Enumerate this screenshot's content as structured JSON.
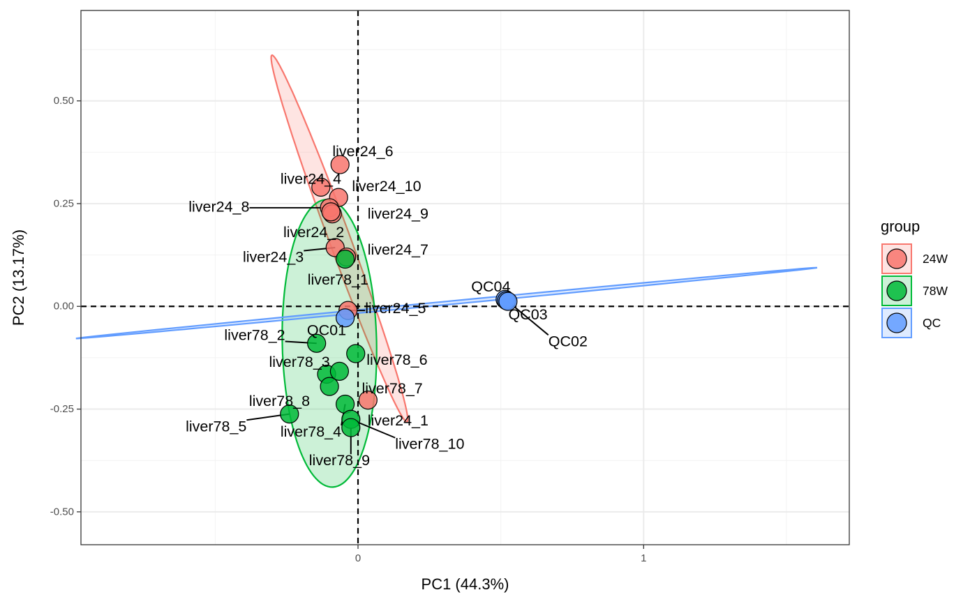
{
  "chart_data": {
    "type": "scatter",
    "xlabel": "PC1 (44.3%)",
    "ylabel": "PC2 (13.17%)",
    "xlim": [
      -0.97,
      1.72
    ],
    "ylim": [
      -0.58,
      0.72
    ],
    "x_ticks": [
      {
        "v": 0,
        "label": "0"
      },
      {
        "v": 1,
        "label": "1"
      }
    ],
    "y_ticks": [
      {
        "v": 0.5,
        "label": "0.50"
      },
      {
        "v": 0.25,
        "label": "0.25"
      },
      {
        "v": 0.0,
        "label": "0.00"
      },
      {
        "v": -0.25,
        "label": "-0.25"
      },
      {
        "v": -0.5,
        "label": "-0.50"
      }
    ],
    "grid": true,
    "reference_lines": {
      "x": 0,
      "y": 0,
      "style": "dashed"
    },
    "legend": {
      "title": "group",
      "position": "right",
      "entries": [
        {
          "name": "24W",
          "color": "#F8766D"
        },
        {
          "name": "78W",
          "color": "#00BA38"
        },
        {
          "name": "QC",
          "color": "#619CFF"
        }
      ]
    },
    "ellipses": [
      {
        "group": "24W",
        "color": "#F8766D",
        "center": [
          -0.065,
          0.165
        ],
        "half_major": 0.505,
        "half_minor": 0.035,
        "angle_deg": -62
      },
      {
        "group": "78W",
        "color": "#00BA38",
        "center": [
          -0.1,
          -0.09
        ],
        "half_major": 0.35,
        "half_minor": 0.165,
        "angle_deg": -88
      },
      {
        "group": "QC",
        "color": "#619CFF",
        "center": [
          0.31,
          0.008
        ],
        "half_major": 1.3,
        "half_minor": 0.004,
        "angle_deg": 3.8
      }
    ],
    "points": [
      {
        "label": "liver24_6",
        "group": "24W",
        "x": -0.063,
        "y": 0.345,
        "lx": 0.017,
        "ly": 0.377,
        "anchor": "middle",
        "leader": false
      },
      {
        "label": "liver24_4",
        "group": "24W",
        "x": -0.13,
        "y": 0.29,
        "lx": -0.165,
        "ly": 0.31,
        "anchor": "middle",
        "leader": false
      },
      {
        "label": "liver24_10",
        "group": "24W",
        "x": -0.068,
        "y": 0.265,
        "lx": 0.1,
        "ly": 0.292,
        "anchor": "middle",
        "leader": false
      },
      {
        "label": "liver24_8",
        "group": "24W",
        "x": -0.1,
        "y": 0.24,
        "lx": -0.38,
        "ly": 0.242,
        "anchor": "end",
        "leader": true
      },
      {
        "label": "liver24_9",
        "group": "24W",
        "x": -0.09,
        "y": 0.225,
        "lx": 0.14,
        "ly": 0.225,
        "anchor": "middle",
        "leader": false
      },
      {
        "label": "liver24_2",
        "group": "24W",
        "x": -0.095,
        "y": 0.23,
        "lx": -0.155,
        "ly": 0.18,
        "anchor": "middle",
        "leader": false
      },
      {
        "label": "liver24_3",
        "group": "24W",
        "x": -0.08,
        "y": 0.143,
        "lx": -0.19,
        "ly": 0.12,
        "anchor": "end",
        "leader": true
      },
      {
        "label": "liver24_7",
        "group": "24W",
        "x": -0.04,
        "y": 0.12,
        "lx": 0.14,
        "ly": 0.138,
        "anchor": "middle",
        "leader": false
      },
      {
        "label": "liver24_5",
        "group": "24W",
        "x": -0.035,
        "y": -0.01,
        "lx": 0.025,
        "ly": -0.005,
        "anchor": "start",
        "leader": true
      },
      {
        "label": "liver24_1",
        "group": "24W",
        "x": 0.035,
        "y": -0.228,
        "lx": 0.14,
        "ly": -0.278,
        "anchor": "middle",
        "leader": false
      },
      {
        "label": "liver78_1",
        "group": "78W",
        "x": -0.045,
        "y": 0.115,
        "lx": -0.07,
        "ly": 0.065,
        "anchor": "middle",
        "leader": false
      },
      {
        "label": "liver78_2",
        "group": "78W",
        "x": -0.145,
        "y": -0.09,
        "lx": -0.255,
        "ly": -0.07,
        "anchor": "end",
        "leader": true
      },
      {
        "label": "liver78_3",
        "group": "78W",
        "x": -0.11,
        "y": -0.165,
        "lx": -0.205,
        "ly": -0.135,
        "anchor": "middle",
        "leader": false
      },
      {
        "label": "liver78_6",
        "group": "78W",
        "x": -0.008,
        "y": -0.115,
        "lx": 0.03,
        "ly": -0.13,
        "anchor": "start",
        "leader": false
      },
      {
        "label": "liver78_7",
        "group": "78W",
        "x": -0.065,
        "y": -0.158,
        "lx": 0.12,
        "ly": -0.2,
        "anchor": "middle",
        "leader": false
      },
      {
        "label": "liver78_8",
        "group": "78W",
        "x": -0.1,
        "y": -0.195,
        "lx": -0.275,
        "ly": -0.23,
        "anchor": "middle",
        "leader": false
      },
      {
        "label": "liver78_5",
        "group": "78W",
        "x": -0.24,
        "y": -0.262,
        "lx": -0.39,
        "ly": -0.292,
        "anchor": "end",
        "leader": true
      },
      {
        "label": "liver78_4",
        "group": "78W",
        "x": -0.045,
        "y": -0.238,
        "lx": -0.165,
        "ly": -0.305,
        "anchor": "middle",
        "leader": true
      },
      {
        "label": "liver78_10",
        "group": "78W",
        "x": -0.025,
        "y": -0.275,
        "lx": 0.13,
        "ly": -0.335,
        "anchor": "start",
        "leader": true
      },
      {
        "label": "liver78_9",
        "group": "78W",
        "x": -0.025,
        "y": -0.295,
        "lx": -0.065,
        "ly": -0.375,
        "anchor": "middle",
        "leader": true
      },
      {
        "label": "QC01",
        "group": "QC",
        "x": -0.045,
        "y": -0.028,
        "lx": -0.11,
        "ly": -0.058,
        "anchor": "middle",
        "leader": false
      },
      {
        "label": "QC04",
        "group": "QC",
        "x": 0.515,
        "y": 0.017,
        "lx": 0.465,
        "ly": 0.048,
        "anchor": "middle",
        "leader": false
      },
      {
        "label": "QC03",
        "group": "QC",
        "x": 0.52,
        "y": 0.014,
        "lx": 0.595,
        "ly": -0.02,
        "anchor": "middle",
        "leader": false
      },
      {
        "label": "QC02",
        "group": "QC",
        "x": 0.525,
        "y": 0.012,
        "lx": 0.735,
        "ly": -0.085,
        "anchor": "middle",
        "leader": true
      }
    ]
  }
}
